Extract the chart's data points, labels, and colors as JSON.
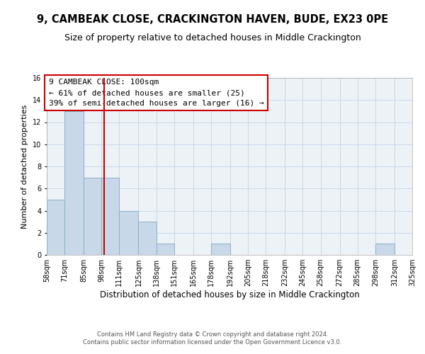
{
  "title": "9, CAMBEAK CLOSE, CRACKINGTON HAVEN, BUDE, EX23 0PE",
  "subtitle": "Size of property relative to detached houses in Middle Crackington",
  "xlabel": "Distribution of detached houses by size in Middle Crackington",
  "ylabel": "Number of detached properties",
  "bin_edges": [
    58,
    71,
    85,
    98,
    111,
    125,
    138,
    151,
    165,
    178,
    192,
    205,
    218,
    232,
    245,
    258,
    272,
    285,
    298,
    312,
    325
  ],
  "bar_heights": [
    5,
    13,
    7,
    7,
    4,
    3,
    1,
    0,
    0,
    1,
    0,
    0,
    0,
    0,
    0,
    0,
    0,
    0,
    1,
    0
  ],
  "bar_color": "#c8d8e8",
  "bar_edge_color": "#8ab0c8",
  "grid_color": "#c8d8e8",
  "background_color": "#edf2f7",
  "vline_x": 100,
  "vline_color": "#cc0000",
  "ylim": [
    0,
    16
  ],
  "yticks": [
    0,
    2,
    4,
    6,
    8,
    10,
    12,
    14,
    16
  ],
  "annotation_box_title": "9 CAMBEAK CLOSE: 100sqm",
  "annotation_line1": "← 61% of detached houses are smaller (25)",
  "annotation_line2": "39% of semi-detached houses are larger (16) →",
  "annotation_box_edge": "#cc0000",
  "footer_line1": "Contains HM Land Registry data © Crown copyright and database right 2024.",
  "footer_line2": "Contains public sector information licensed under the Open Government Licence v3.0.",
  "title_fontsize": 10.5,
  "subtitle_fontsize": 9,
  "xlabel_fontsize": 8.5,
  "ylabel_fontsize": 8,
  "tick_fontsize": 7,
  "annotation_fontsize": 8,
  "footer_fontsize": 6
}
